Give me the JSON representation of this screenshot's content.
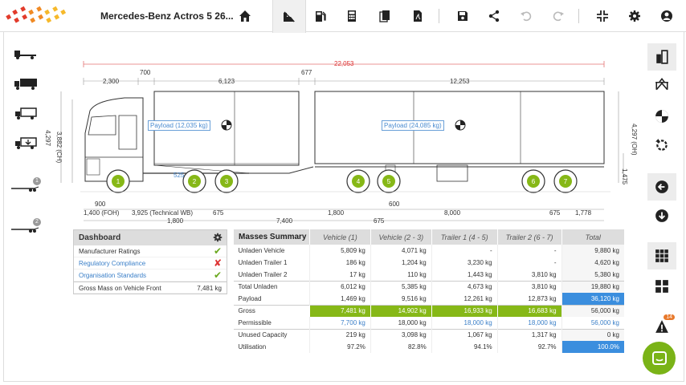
{
  "app": {
    "title": "Mercedes-Benz Actros 5 26...",
    "accent": "#86b817",
    "highlight": "#3b8ede"
  },
  "toolbar": {
    "icons": [
      "home-icon",
      "truck-payload-icon",
      "fuel-icon",
      "calculator-icon",
      "documents-icon",
      "pdf-icon",
      "save-icon",
      "share-icon",
      "undo-icon",
      "redo-icon",
      "collapse-icon",
      "gear-icon",
      "user-icon"
    ]
  },
  "left_rail": {
    "badges": [
      "1",
      "2"
    ]
  },
  "right_rail": {
    "alert_count": "14"
  },
  "drawing": {
    "overall_length": "22,053",
    "top_dims": {
      "d2300": "2,300",
      "d700": "700",
      "d6123": "6,123",
      "d677": "677",
      "d12253": "12,253"
    },
    "heights": {
      "left_4297": "4,297",
      "left_3882": "3,882 (CH)",
      "right_4297": "4,297 (OH)",
      "right_1475": "1,475"
    },
    "payload_1": "Payload (12,035 kg)",
    "payload_2": "Payload (24,085 kg)",
    "d525": "525",
    "bottom_dims": {
      "d900": "900",
      "foh": "1,400 (FOH)",
      "wb": "3,925 (Technical WB)",
      "d675a": "675",
      "d1800a": "1,800",
      "d7400": "7,400",
      "d675b": "675",
      "d1800b": "1,800",
      "d600": "600",
      "d8000": "8,000",
      "d675c": "675",
      "d1778": "1,778"
    },
    "axles": [
      "1",
      "2",
      "3",
      "4",
      "5",
      "6",
      "7"
    ]
  },
  "dashboard": {
    "title": "Dashboard",
    "rows": [
      {
        "label": "Manufacturer Ratings",
        "status": "ok",
        "mark": "✔"
      },
      {
        "label": "Regulatory Compliance",
        "status": "bad",
        "mark": "✘"
      },
      {
        "label": "Organisation Standards",
        "status": "ok",
        "mark": "✔"
      }
    ],
    "gross_front_label": "Gross Mass on Vehicle Front",
    "gross_front_value": "7,481 kg"
  },
  "masses": {
    "headers": [
      "Masses Summary",
      "Vehicle (1)",
      "Vehicle (2 - 3)",
      "Trailer 1 (4 - 5)",
      "Trailer 2 (6 - 7)",
      "Total"
    ],
    "rows": [
      {
        "label": "Unladen Vehicle",
        "values": [
          "5,809 kg",
          "4,071 kg",
          "-",
          "-",
          "9,880 kg"
        ]
      },
      {
        "label": "Unladen Trailer 1",
        "values": [
          "186 kg",
          "1,204 kg",
          "3,230 kg",
          "-",
          "4,620 kg"
        ]
      },
      {
        "label": "Unladen Trailer 2",
        "values": [
          "17 kg",
          "110 kg",
          "1,443 kg",
          "3,810 kg",
          "5,380 kg"
        ]
      },
      {
        "label": "Total Unladen",
        "values": [
          "6,012 kg",
          "5,385 kg",
          "4,673 kg",
          "3,810 kg",
          "19,880 kg"
        ]
      },
      {
        "label": "Payload",
        "values": [
          "1,469 kg",
          "9,516 kg",
          "12,261 kg",
          "12,873 kg",
          "36,120 kg"
        ]
      },
      {
        "label": "Gross",
        "values": [
          "7,481 kg",
          "14,902 kg",
          "16,933 kg",
          "16,683 kg",
          "56,000 kg"
        ]
      },
      {
        "label": "Permissible",
        "values": [
          "7,700 kg",
          "18,000 kg",
          "18,000 kg",
          "18,000 kg",
          "56,000 kg"
        ]
      },
      {
        "label": "Unused Capacity",
        "values": [
          "219 kg",
          "3,098 kg",
          "1,067 kg",
          "1,317 kg",
          "0 kg"
        ]
      },
      {
        "label": "Utilisation",
        "values": [
          "97.2%",
          "82.8%",
          "94.1%",
          "92.7%",
          "100.0%"
        ]
      }
    ]
  }
}
